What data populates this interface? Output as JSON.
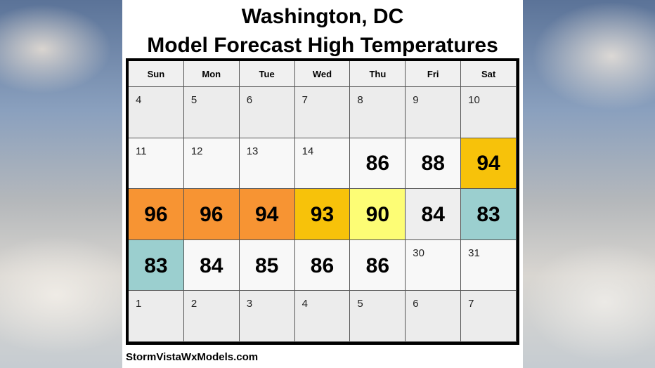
{
  "title_line1": "Washington, DC",
  "title_line2": "Model Forecast High Temperatures",
  "weekdays": [
    "Sun",
    "Mon",
    "Tue",
    "Wed",
    "Thu",
    "Fri",
    "Sat"
  ],
  "weeks": [
    [
      {
        "day": "4",
        "temp": "",
        "color": "gray"
      },
      {
        "day": "5",
        "temp": "",
        "color": "gray"
      },
      {
        "day": "6",
        "temp": "",
        "color": "gray"
      },
      {
        "day": "7",
        "temp": "",
        "color": "gray"
      },
      {
        "day": "8",
        "temp": "",
        "color": "gray"
      },
      {
        "day": "9",
        "temp": "",
        "color": "gray"
      },
      {
        "day": "10",
        "temp": "",
        "color": "gray"
      }
    ],
    [
      {
        "day": "11",
        "temp": "",
        "color": "white"
      },
      {
        "day": "12",
        "temp": "",
        "color": "white"
      },
      {
        "day": "13",
        "temp": "",
        "color": "white"
      },
      {
        "day": "14",
        "temp": "",
        "color": "white"
      },
      {
        "day": "",
        "temp": "86",
        "color": "white"
      },
      {
        "day": "",
        "temp": "88",
        "color": "white"
      },
      {
        "day": "",
        "temp": "94",
        "color": "c-gold"
      }
    ],
    [
      {
        "day": "",
        "temp": "96",
        "color": "c-orange"
      },
      {
        "day": "",
        "temp": "96",
        "color": "c-orange"
      },
      {
        "day": "",
        "temp": "94",
        "color": "c-orange"
      },
      {
        "day": "",
        "temp": "93",
        "color": "c-gold"
      },
      {
        "day": "",
        "temp": "90",
        "color": "c-yellow"
      },
      {
        "day": "",
        "temp": "84",
        "color": "c-light"
      },
      {
        "day": "",
        "temp": "83",
        "color": "c-teal"
      }
    ],
    [
      {
        "day": "",
        "temp": "83",
        "color": "c-teal"
      },
      {
        "day": "",
        "temp": "84",
        "color": "white"
      },
      {
        "day": "",
        "temp": "85",
        "color": "white"
      },
      {
        "day": "",
        "temp": "86",
        "color": "white"
      },
      {
        "day": "",
        "temp": "86",
        "color": "white"
      },
      {
        "day": "30",
        "temp": "",
        "color": "white"
      },
      {
        "day": "31",
        "temp": "",
        "color": "white"
      }
    ],
    [
      {
        "day": "1",
        "temp": "",
        "color": "gray"
      },
      {
        "day": "2",
        "temp": "",
        "color": "gray"
      },
      {
        "day": "3",
        "temp": "",
        "color": "gray"
      },
      {
        "day": "4",
        "temp": "",
        "color": "gray"
      },
      {
        "day": "5",
        "temp": "",
        "color": "gray"
      },
      {
        "day": "6",
        "temp": "",
        "color": "gray"
      },
      {
        "day": "7",
        "temp": "",
        "color": "gray"
      }
    ]
  ],
  "source": "StormVistaWxModels.com"
}
